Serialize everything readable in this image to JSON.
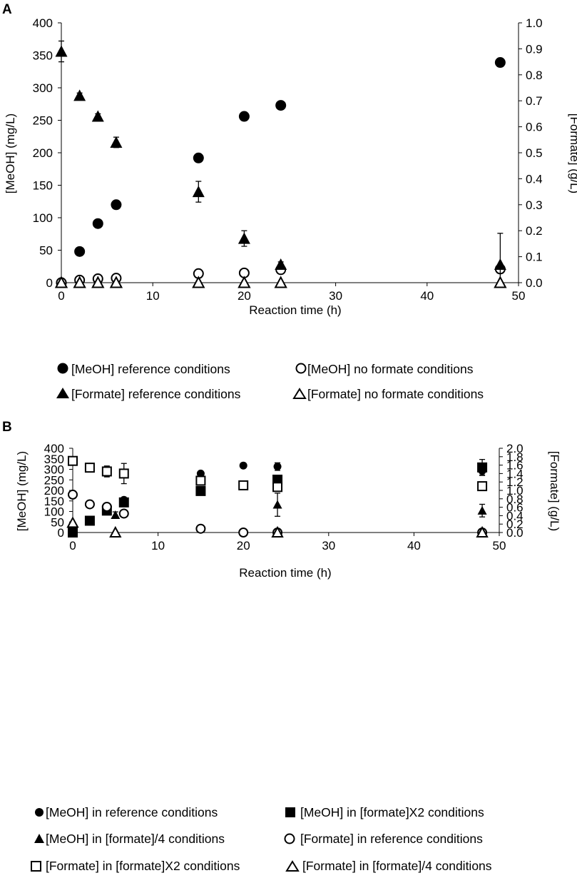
{
  "chart_data": [
    {
      "type": "scatter",
      "panel_label": "A",
      "xlabel": "Reaction time (h)",
      "ylabel": "[MeOH] (mg/L)",
      "y2label": "[Formate] (g/L)",
      "xlim": [
        0,
        50
      ],
      "ylim": [
        0,
        400
      ],
      "y2lim": [
        0,
        1.0
      ],
      "x_ticks": [
        "0",
        "10",
        "20",
        "30",
        "40",
        "50"
      ],
      "y_ticks": [
        "0",
        "50",
        "100",
        "150",
        "200",
        "250",
        "300",
        "350",
        "400"
      ],
      "y2_ticks": [
        "0.0",
        "0.1",
        "0.2",
        "0.3",
        "0.4",
        "0.5",
        "0.6",
        "0.7",
        "0.8",
        "0.9",
        "1.0"
      ],
      "grid": false,
      "series": [
        {
          "name": "[MeOH] reference conditions",
          "marker": "circle-filled",
          "axis": "left",
          "x": [
            0,
            2,
            4,
            6,
            15,
            20,
            24,
            48
          ],
          "y": [
            0,
            48,
            91,
            120,
            192,
            256,
            273,
            339
          ],
          "err": [
            0,
            0,
            0,
            0,
            0,
            0,
            0,
            0
          ]
        },
        {
          "name": "[MeOH] no formate conditions",
          "marker": "circle-open",
          "axis": "left",
          "x": [
            0,
            2,
            4,
            6,
            15,
            20,
            24,
            48
          ],
          "y": [
            0,
            4,
            6,
            7,
            14,
            15,
            20,
            21
          ],
          "err": [
            0,
            0,
            0,
            0,
            0,
            0,
            0,
            0
          ]
        },
        {
          "name": "[Formate] reference conditions",
          "marker": "triangle-filled",
          "axis": "right",
          "x": [
            0,
            2,
            4,
            6,
            15,
            20,
            24,
            48
          ],
          "y": [
            0.89,
            0.72,
            0.64,
            0.54,
            0.35,
            0.17,
            0.07,
            0.07
          ],
          "err": [
            0.04,
            0.01,
            0.01,
            0.02,
            0.04,
            0.03,
            0.01,
            0.12
          ]
        },
        {
          "name": "[Formate] no formate conditions",
          "marker": "triangle-open",
          "axis": "right",
          "x": [
            0,
            2,
            4,
            6,
            15,
            20,
            24,
            48
          ],
          "y": [
            0,
            0,
            0,
            0,
            0,
            0,
            0,
            0
          ],
          "err": [
            0,
            0,
            0,
            0,
            0,
            0,
            0,
            0
          ]
        }
      ]
    },
    {
      "type": "scatter",
      "panel_label": "B",
      "xlabel": "Reaction time (h)",
      "ylabel": "[MeOH] (mg/L)",
      "y2label": "[Formate] (g/L)",
      "xlim": [
        0,
        50
      ],
      "ylim": [
        0,
        400
      ],
      "y2lim": [
        0,
        2.0
      ],
      "x_ticks": [
        "0",
        "10",
        "20",
        "30",
        "40",
        "50"
      ],
      "y_ticks": [
        "0",
        "50",
        "100",
        "150",
        "200",
        "250",
        "300",
        "350",
        "400"
      ],
      "y2_ticks": [
        "0.0",
        "0.2",
        "0.4",
        "0.6",
        "0.8",
        "1.0",
        "1.2",
        "1.4",
        "1.6",
        "1.8",
        "2.0"
      ],
      "grid": false,
      "series": [
        {
          "name": "[MeOH] in reference conditions",
          "marker": "circle-filled",
          "size": "small",
          "axis": "left",
          "x": [
            0,
            2,
            4,
            6,
            15,
            20,
            24,
            48
          ],
          "y": [
            0,
            55,
            108,
            155,
            280,
            318,
            313,
            293
          ],
          "err": [
            0,
            0,
            0,
            0,
            6,
            10,
            18,
            20
          ]
        },
        {
          "name": "[MeOH] in [formate]X2 conditions",
          "marker": "square-filled",
          "axis": "left",
          "x": [
            0,
            2,
            4,
            6,
            15,
            24,
            48
          ],
          "y": [
            0,
            56,
            104,
            143,
            197,
            251,
            309
          ],
          "err": [
            0,
            0,
            0,
            0,
            0,
            0,
            38
          ]
        },
        {
          "name": "[MeOH] in [formate]/4 conditions",
          "marker": "triangle-filled",
          "size": "small",
          "axis": "left",
          "x": [
            0,
            5,
            24,
            48
          ],
          "y": [
            0,
            83,
            132,
            104
          ],
          "err": [
            0,
            15,
            55,
            30
          ]
        },
        {
          "name": "[Formate] in reference conditions",
          "marker": "circle-open",
          "axis": "right",
          "x": [
            0,
            2,
            4,
            6,
            15,
            20,
            24,
            48
          ],
          "y": [
            0.9,
            0.67,
            0.61,
            0.45,
            0.09,
            0,
            0,
            0
          ],
          "err": [
            0,
            0,
            0,
            0,
            0,
            0,
            0,
            0
          ]
        },
        {
          "name": "[Formate] in [formate]X2 conditions",
          "marker": "square-open",
          "axis": "right",
          "x": [
            0,
            2,
            4,
            6,
            15,
            20,
            24,
            48
          ],
          "y": [
            1.7,
            1.54,
            1.45,
            1.4,
            1.23,
            1.12,
            1.08,
            1.1
          ],
          "err": [
            0.02,
            0.05,
            0.13,
            0.24,
            0,
            0.08,
            0.07,
            0
          ]
        },
        {
          "name": "[Formate] in [formate]/4 conditions",
          "marker": "triangle-open",
          "axis": "right",
          "x": [
            0,
            5,
            24,
            48
          ],
          "y": [
            0.23,
            0,
            0,
            0
          ],
          "err": [
            0,
            0,
            0,
            0
          ]
        }
      ]
    }
  ]
}
